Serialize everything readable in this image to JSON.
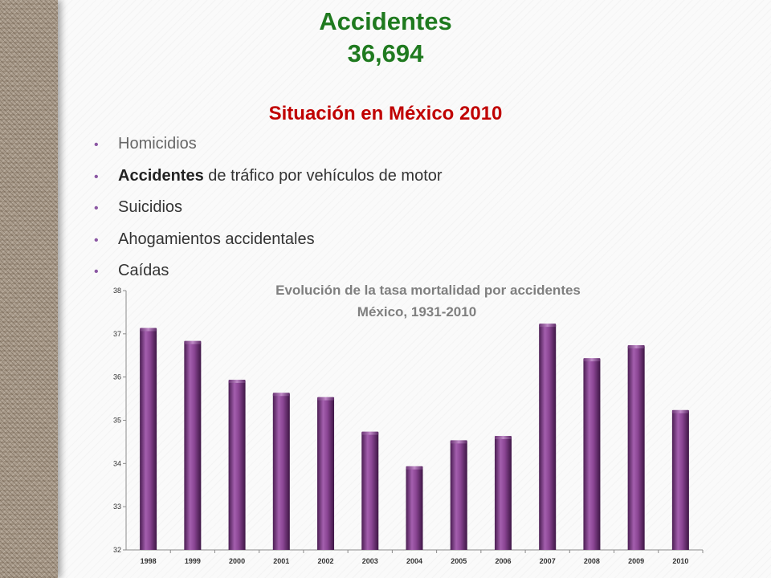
{
  "header": {
    "title_line1": "Accidentes",
    "title_line2": "36,694",
    "subtitle": "Situación en México 2010"
  },
  "bullets": [
    {
      "bold": "",
      "text": "Homicidios"
    },
    {
      "bold": "",
      "text": "Accidentes de tráfico por vehículos de motor"
    },
    {
      "bold": "",
      "text": "Suicidios"
    },
    {
      "bold": "",
      "text": "Ahogamientos accidentales"
    },
    {
      "bold": "",
      "text": "Caídas"
    }
  ],
  "bullet_parts": {
    "item1_bold": "Accidentes",
    "item1_rest": " de tráfico por vehículos de motor"
  },
  "colors": {
    "title": "#1f7a1f",
    "subtitle": "#c00000",
    "bar": "#7f3f86",
    "bullet": "#8b57a3"
  },
  "chart_data": {
    "type": "bar",
    "title": "Evolución de la tasa mortalidad por accidentes",
    "subtitle": "México, 1931-2010",
    "xlabel": "",
    "ylabel": "",
    "categories": [
      "1998",
      "1999",
      "2000",
      "2001",
      "2002",
      "2003",
      "2004",
      "2005",
      "2006",
      "2007",
      "2008",
      "2009",
      "2010"
    ],
    "values": [
      37.1,
      36.8,
      35.9,
      35.6,
      35.5,
      34.7,
      33.9,
      34.5,
      34.6,
      37.2,
      36.4,
      36.7,
      35.2
    ],
    "ylim": [
      32,
      38
    ],
    "yticks": [
      32,
      33,
      34,
      35,
      36,
      37,
      38
    ],
    "grid": false,
    "legend": "none"
  }
}
